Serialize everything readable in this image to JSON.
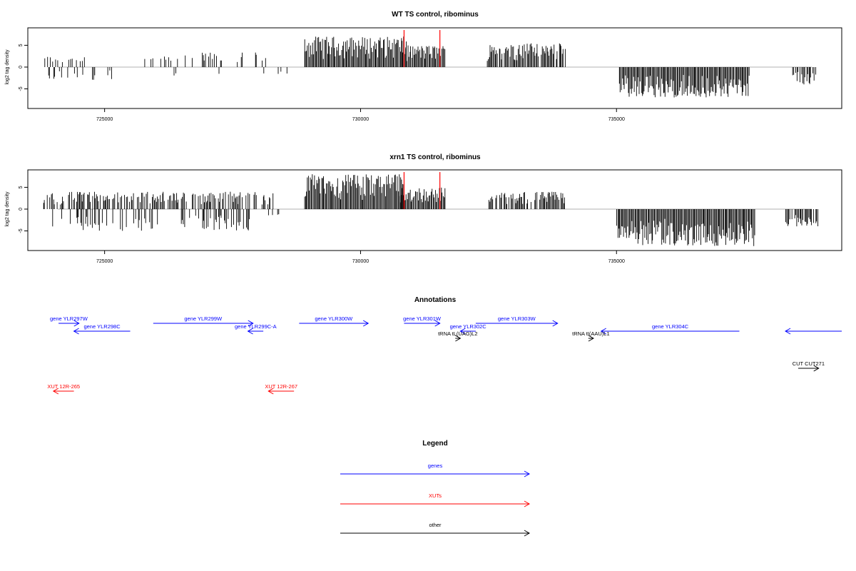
{
  "chart_data": [
    {
      "type": "bar",
      "title": "WT TS control, ribominus",
      "ylabel": "log2 tag density",
      "xlim": [
        723500,
        739400
      ],
      "ylim": [
        -9.5,
        9
      ],
      "x_ticks": [
        725000,
        730000,
        735000
      ],
      "y_ticks": [
        -5,
        0,
        5
      ],
      "grid": false,
      "series": [
        {
          "strand": "plus",
          "color": "#000000",
          "regions": [
            {
              "start": 723800,
              "end": 724600,
              "density": 0.35,
              "max": 2.5
            },
            {
              "start": 725700,
              "end": 726300,
              "density": 0.25,
              "max": 2.5
            },
            {
              "start": 726300,
              "end": 728200,
              "density": 0.3,
              "max": 3.5
            },
            {
              "start": 728900,
              "end": 730900,
              "density": 1.0,
              "max": 7
            },
            {
              "start": 730800,
              "end": 731650,
              "density": 1.0,
              "max": 5
            },
            {
              "start": 732450,
              "end": 734000,
              "density": 0.8,
              "max": 5.5
            },
            {
              "start": 734400,
              "end": 734600,
              "density": 0.2,
              "max": 1.5
            }
          ]
        },
        {
          "strand": "minus",
          "color": "#000000",
          "regions": [
            {
              "start": 723900,
              "end": 725200,
              "density": 0.25,
              "max": 3
            },
            {
              "start": 726000,
              "end": 728600,
              "density": 0.05,
              "max": 2
            },
            {
              "start": 735050,
              "end": 737600,
              "density": 1.0,
              "max": 7
            },
            {
              "start": 738400,
              "end": 738900,
              "density": 0.8,
              "max": 4
            }
          ]
        }
      ],
      "highlights": [
        {
          "x": 730850,
          "y": 8.5
        },
        {
          "x": 731550,
          "y": 8.5
        }
      ]
    },
    {
      "type": "bar",
      "title": "xrn1 TS control, ribominus",
      "ylabel": "log2 tag density",
      "xlim": [
        723500,
        739400
      ],
      "ylim": [
        -9.5,
        9
      ],
      "x_ticks": [
        725000,
        730000,
        735000
      ],
      "y_ticks": [
        -5,
        0,
        5
      ],
      "grid": false,
      "series": [
        {
          "strand": "plus",
          "color": "#000000",
          "regions": [
            {
              "start": 723800,
              "end": 728300,
              "density": 0.6,
              "max": 4
            },
            {
              "start": 728900,
              "end": 730850,
              "density": 1.0,
              "max": 8
            },
            {
              "start": 730750,
              "end": 731650,
              "density": 1.0,
              "max": 5
            },
            {
              "start": 732500,
              "end": 734000,
              "density": 0.8,
              "max": 4
            }
          ]
        },
        {
          "strand": "minus",
          "color": "#000000",
          "regions": [
            {
              "start": 723900,
              "end": 727900,
              "density": 0.3,
              "max": 5
            },
            {
              "start": 728200,
              "end": 728400,
              "density": 0.2,
              "max": 1.5
            },
            {
              "start": 735000,
              "end": 737700,
              "density": 1.0,
              "max": 8.5
            },
            {
              "start": 738300,
              "end": 738950,
              "density": 0.8,
              "max": 4
            }
          ]
        }
      ],
      "highlights": [
        {
          "x": 730850,
          "y": 8.5
        },
        {
          "x": 731550,
          "y": 8.5
        }
      ]
    }
  ],
  "annotations": {
    "title": "Annotations",
    "items": [
      {
        "label": "gene YLR297W",
        "start": 724100,
        "end": 724500,
        "row": 1,
        "strand": "+",
        "color": "#0000ff"
      },
      {
        "label": "gene YLR298C",
        "start": 724400,
        "end": 725500,
        "row": 2,
        "strand": "-",
        "color": "#0000ff"
      },
      {
        "label": "gene YLR299W",
        "start": 725950,
        "end": 727900,
        "row": 1,
        "strand": "+",
        "color": "#0000ff"
      },
      {
        "label": "gene YLR299C-A",
        "start": 727800,
        "end": 728100,
        "row": 2,
        "strand": "-",
        "color": "#0000ff"
      },
      {
        "label": "gene YLR300W",
        "start": 728800,
        "end": 730150,
        "row": 1,
        "strand": "+",
        "color": "#0000ff"
      },
      {
        "label": "gene YLR301W",
        "start": 730850,
        "end": 731550,
        "row": 1,
        "strand": "+",
        "color": "#0000ff"
      },
      {
        "label": "gene YLR302C",
        "start": 731950,
        "end": 732250,
        "row": 2,
        "strand": "-",
        "color": "#0000ff"
      },
      {
        "label": "gene YLR303W",
        "start": 732250,
        "end": 733850,
        "row": 1,
        "strand": "+",
        "color": "#0000ff"
      },
      {
        "label": "gene YLR304C",
        "start": 734700,
        "end": 737400,
        "row": 3,
        "strand": "-",
        "color": "#0000ff"
      },
      {
        "label": "",
        "start": 738300,
        "end": 739400,
        "row": 3,
        "strand": "-",
        "color": "#0000ff"
      },
      {
        "label": "tRNA tL(UAG)L2",
        "start": 731850,
        "end": 731950,
        "row": 4,
        "strand": "+",
        "color": "#000000"
      },
      {
        "label": "tRNA tI(AAU)L1",
        "start": 734450,
        "end": 734550,
        "row": 4,
        "strand": "+",
        "color": "#000000"
      },
      {
        "label": "CUT CUT271",
        "start": 738550,
        "end": 738950,
        "row": 5,
        "strand": "+",
        "color": "#000000"
      },
      {
        "label": "XUT 12R-265",
        "start": 724000,
        "end": 724400,
        "row": 6,
        "strand": "-",
        "color": "#ff0000"
      },
      {
        "label": "XUT 12R-267",
        "start": 728200,
        "end": 728700,
        "row": 6,
        "strand": "-",
        "color": "#ff0000"
      }
    ]
  },
  "legend": {
    "title": "Legend",
    "items": [
      {
        "label": "genes",
        "color": "#0000ff"
      },
      {
        "label": "XUTs",
        "color": "#ff0000"
      },
      {
        "label": "other",
        "color": "#000000"
      }
    ]
  },
  "colors": {
    "highlight": "#ff0000",
    "axis": "#000000",
    "baseline": "#999999"
  }
}
